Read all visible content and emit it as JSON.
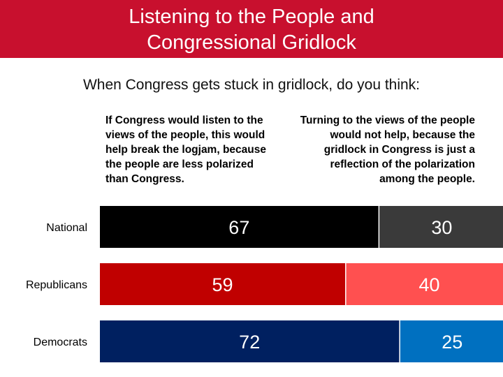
{
  "header": {
    "title_line1": "Listening to the People and",
    "title_line2": "Congressional Gridlock"
  },
  "question": "When Congress gets stuck in gridlock, do you think:",
  "chart_data": {
    "type": "bar",
    "orientation": "horizontal",
    "stacked": true,
    "categories": [
      "National",
      "Republicans",
      "Democrats"
    ],
    "series": [
      {
        "name": "If Congress would listen to the views of the people, this would help break the logjam, because the people are less polarized than Congress.",
        "values": [
          67,
          59,
          72
        ]
      },
      {
        "name": "Turning to the views of the people would not help, because the gridlock in Congress is just a reflection of the polarization among the people.",
        "values": [
          30,
          40,
          25
        ]
      }
    ],
    "colors": {
      "National": [
        "#000000",
        "#3a3a3a"
      ],
      "Republicans": [
        "#c00000",
        "#ff5050"
      ],
      "Democrats": [
        "#002060",
        "#0070c0"
      ]
    },
    "data_labels": true,
    "legend": "column headers above bars",
    "grid": false,
    "xlim": [
      0,
      100
    ]
  }
}
